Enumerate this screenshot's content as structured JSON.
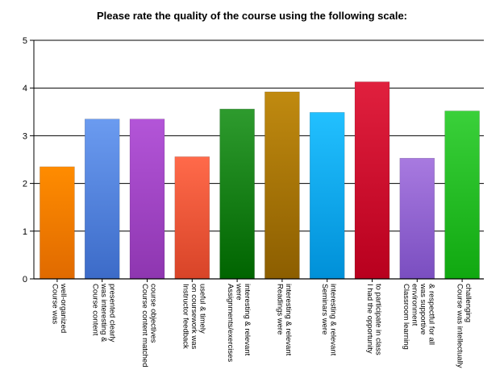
{
  "chart_data": {
    "type": "bar",
    "title": "Please rate the quality of the course using the following scale:",
    "xlabel": "",
    "ylabel": "",
    "ylim": [
      0,
      5
    ],
    "yticks": [
      "0",
      "1",
      "2",
      "3",
      "4",
      "5"
    ],
    "grid": true,
    "legend": "none",
    "categories": [
      [
        "Course was",
        "well-organized"
      ],
      [
        "Course content",
        "was interesting &",
        "presented clearly"
      ],
      [
        "Course content matched",
        "course objectives"
      ],
      [
        "Instructor feedback",
        "on coursework was",
        "useful & timely"
      ],
      [
        "Assignments/exercises",
        "were",
        "interesting & relevant"
      ],
      [
        "Readings were",
        "interesting & relevant"
      ],
      [
        "Seminars were",
        "interesting & relevant"
      ],
      [
        "I had the opportunity",
        "to participate in class"
      ],
      [
        "Classroom learning",
        "environment",
        "was supportive",
        "& respectful for all"
      ],
      [
        "Course was intellectually",
        "challenging"
      ]
    ],
    "values": [
      2.35,
      3.35,
      3.35,
      2.56,
      3.56,
      3.92,
      3.49,
      4.13,
      2.53,
      3.52
    ],
    "colors": [
      [
        "#ff8c00",
        "#e06a00"
      ],
      [
        "#6b9bf0",
        "#3c6bc8"
      ],
      [
        "#b355d8",
        "#8e36b0"
      ],
      [
        "#ff6a4a",
        "#d84428"
      ],
      [
        "#2e9b2e",
        "#006400"
      ],
      [
        "#c08a10",
        "#8c5e00"
      ],
      [
        "#22c0ff",
        "#0090d8"
      ],
      [
        "#e0203e",
        "#b8001e"
      ],
      [
        "#a87ae0",
        "#7a4ec0"
      ],
      [
        "#3ad03a",
        "#10a810"
      ]
    ]
  }
}
